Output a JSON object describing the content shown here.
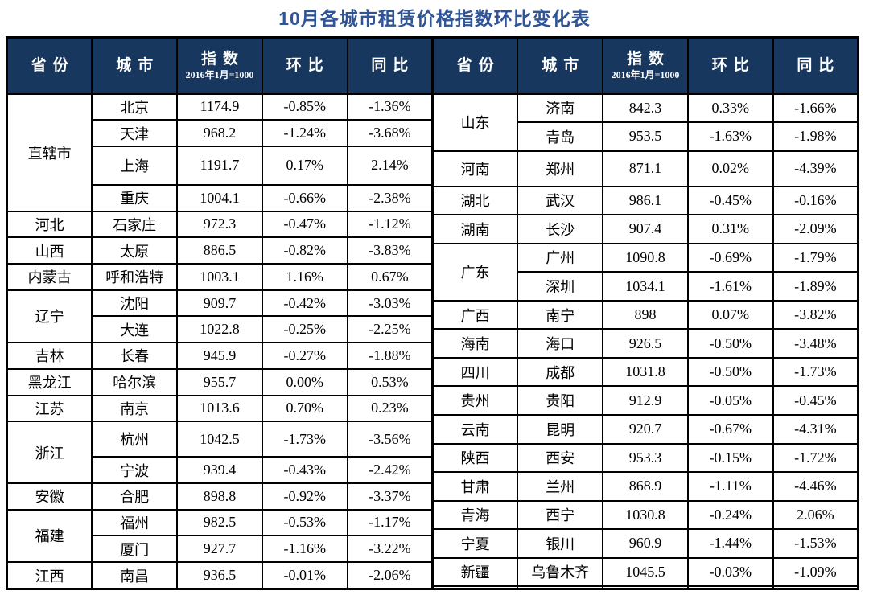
{
  "title": "10月各城市租赁价格指数环比变化表",
  "colors": {
    "title_text": "#2F5597",
    "header_background": "#17375E",
    "header_text": "#FFFFFF",
    "body_text": "#000000",
    "border": "#000000",
    "page_background": "#FFFFFF"
  },
  "header": {
    "province": "省份",
    "city": "城市",
    "index": "指数",
    "index_note": "2016年1月=1000",
    "mom": "环比",
    "yoy": "同比"
  },
  "chart_data": {
    "type": "table",
    "title": "10月各城市租赁价格指数环比变化表",
    "index_base": "2016年1月=1000",
    "columns": [
      "省份",
      "城市",
      "指数 2016年1月=1000",
      "环比",
      "同比"
    ],
    "halves": [
      {
        "groups": [
          {
            "province": "直辖市",
            "cities": [
              {
                "city": "北京",
                "index": "1174.9",
                "mom": "-0.85%",
                "yoy": "-1.36%"
              },
              {
                "city": "天津",
                "index": "968.2",
                "mom": "-1.24%",
                "yoy": "-3.68%"
              },
              {
                "city": "上海",
                "index": "1191.7",
                "mom": "0.17%",
                "yoy": "2.14%"
              },
              {
                "city": "重庆",
                "index": "1004.1",
                "mom": "-0.66%",
                "yoy": "-2.38%"
              }
            ]
          },
          {
            "province": "河北",
            "cities": [
              {
                "city": "石家庄",
                "index": "972.3",
                "mom": "-0.47%",
                "yoy": "-1.12%"
              }
            ]
          },
          {
            "province": "山西",
            "cities": [
              {
                "city": "太原",
                "index": "886.5",
                "mom": "-0.82%",
                "yoy": "-3.83%"
              }
            ]
          },
          {
            "province": "内蒙古",
            "cities": [
              {
                "city": "呼和浩特",
                "index": "1003.1",
                "mom": "1.16%",
                "yoy": "0.67%"
              }
            ]
          },
          {
            "province": "辽宁",
            "cities": [
              {
                "city": "沈阳",
                "index": "909.7",
                "mom": "-0.42%",
                "yoy": "-3.03%"
              },
              {
                "city": "大连",
                "index": "1022.8",
                "mom": "-0.25%",
                "yoy": "-2.25%"
              }
            ]
          },
          {
            "province": "吉林",
            "cities": [
              {
                "city": "长春",
                "index": "945.9",
                "mom": "-0.27%",
                "yoy": "-1.88%"
              }
            ]
          },
          {
            "province": "黑龙江",
            "cities": [
              {
                "city": "哈尔滨",
                "index": "955.7",
                "mom": "0.00%",
                "yoy": "0.53%"
              }
            ]
          },
          {
            "province": "江苏",
            "cities": [
              {
                "city": "南京",
                "index": "1013.6",
                "mom": "0.70%",
                "yoy": "0.23%"
              }
            ]
          },
          {
            "province": "浙江",
            "cities": [
              {
                "city": "杭州",
                "index": "1042.5",
                "mom": "-1.73%",
                "yoy": "-3.56%"
              },
              {
                "city": "宁波",
                "index": "939.4",
                "mom": "-0.43%",
                "yoy": "-2.42%"
              }
            ]
          },
          {
            "province": "安徽",
            "cities": [
              {
                "city": "合肥",
                "index": "898.8",
                "mom": "-0.92%",
                "yoy": "-3.37%"
              }
            ]
          },
          {
            "province": "福建",
            "cities": [
              {
                "city": "福州",
                "index": "982.5",
                "mom": "-0.53%",
                "yoy": "-1.17%"
              },
              {
                "city": "厦门",
                "index": "927.7",
                "mom": "-1.16%",
                "yoy": "-3.22%"
              }
            ]
          },
          {
            "province": "江西",
            "cities": [
              {
                "city": "南昌",
                "index": "936.5",
                "mom": "-0.01%",
                "yoy": "-2.06%"
              }
            ]
          }
        ]
      },
      {
        "groups": [
          {
            "province": "山东",
            "cities": [
              {
                "city": "济南",
                "index": "842.3",
                "mom": "0.33%",
                "yoy": "-1.66%"
              },
              {
                "city": "青岛",
                "index": "953.5",
                "mom": "-1.63%",
                "yoy": "-1.98%"
              }
            ]
          },
          {
            "province": "河南",
            "cities": [
              {
                "city": "郑州",
                "index": "871.1",
                "mom": "0.02%",
                "yoy": "-4.39%"
              }
            ]
          },
          {
            "province": "湖北",
            "cities": [
              {
                "city": "武汉",
                "index": "986.1",
                "mom": "-0.45%",
                "yoy": "-0.16%"
              }
            ]
          },
          {
            "province": "湖南",
            "cities": [
              {
                "city": "长沙",
                "index": "907.4",
                "mom": "0.31%",
                "yoy": "-2.09%"
              }
            ]
          },
          {
            "province": "广东",
            "cities": [
              {
                "city": "广州",
                "index": "1090.8",
                "mom": "-0.69%",
                "yoy": "-1.79%"
              },
              {
                "city": "深圳",
                "index": "1034.1",
                "mom": "-1.61%",
                "yoy": "-1.89%"
              }
            ]
          },
          {
            "province": "广西",
            "cities": [
              {
                "city": "南宁",
                "index": "898",
                "mom": "0.07%",
                "yoy": "-3.82%"
              }
            ]
          },
          {
            "province": "海南",
            "cities": [
              {
                "city": "海口",
                "index": "926.5",
                "mom": "-0.50%",
                "yoy": "-3.48%"
              }
            ]
          },
          {
            "province": "四川",
            "cities": [
              {
                "city": "成都",
                "index": "1031.8",
                "mom": "-0.50%",
                "yoy": "-1.73%"
              }
            ]
          },
          {
            "province": "贵州",
            "cities": [
              {
                "city": "贵阳",
                "index": "912.9",
                "mom": "-0.05%",
                "yoy": "-0.45%"
              }
            ]
          },
          {
            "province": "云南",
            "cities": [
              {
                "city": "昆明",
                "index": "920.7",
                "mom": "-0.67%",
                "yoy": "-4.31%"
              }
            ]
          },
          {
            "province": "陕西",
            "cities": [
              {
                "city": "西安",
                "index": "953.3",
                "mom": "-0.15%",
                "yoy": "-1.72%"
              }
            ]
          },
          {
            "province": "甘肃",
            "cities": [
              {
                "city": "兰州",
                "index": "868.9",
                "mom": "-1.11%",
                "yoy": "-4.46%"
              }
            ]
          },
          {
            "province": "青海",
            "cities": [
              {
                "city": "西宁",
                "index": "1030.8",
                "mom": "-0.24%",
                "yoy": "2.06%"
              }
            ]
          },
          {
            "province": "宁夏",
            "cities": [
              {
                "city": "银川",
                "index": "960.9",
                "mom": "-1.44%",
                "yoy": "-1.53%"
              }
            ]
          },
          {
            "province": "新疆",
            "cities": [
              {
                "city": "乌鲁木齐",
                "index": "1045.5",
                "mom": "-0.03%",
                "yoy": "-1.09%"
              }
            ]
          },
          {
            "province": "",
            "cities": [
              {
                "city": "",
                "index": "",
                "mom": "",
                "yoy": ""
              }
            ]
          }
        ]
      }
    ]
  }
}
